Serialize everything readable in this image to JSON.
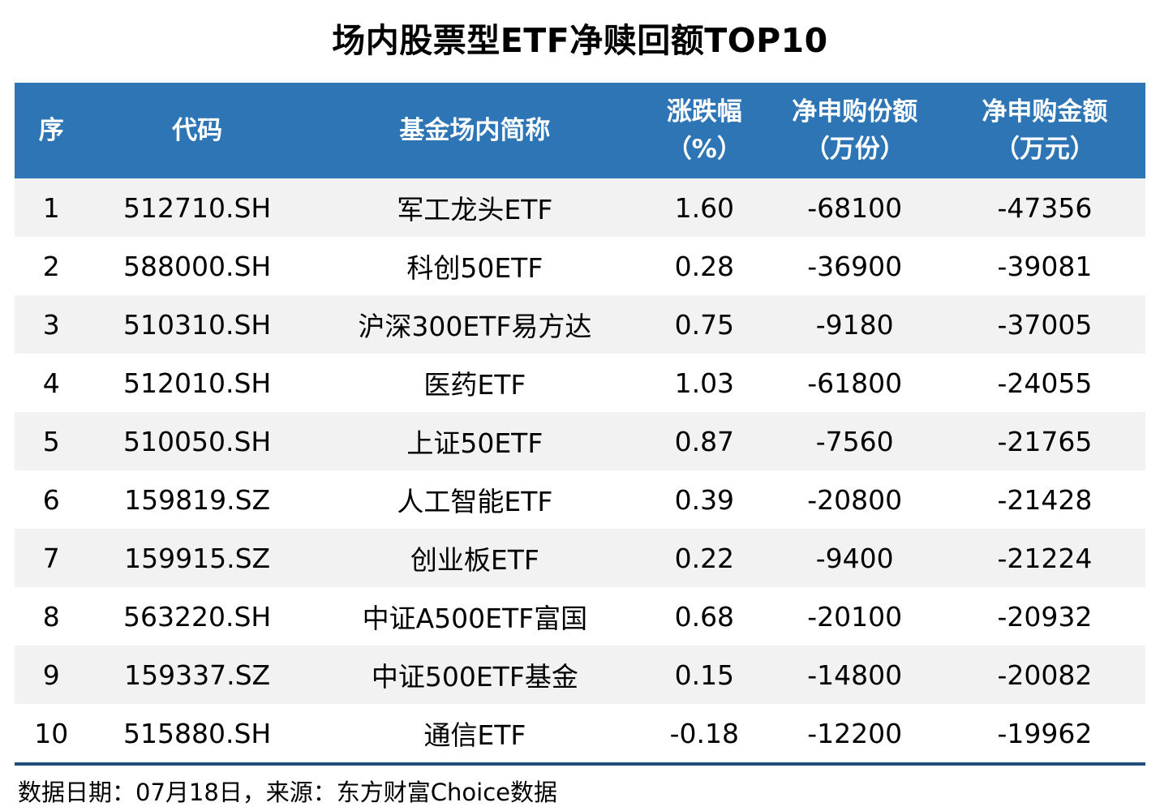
{
  "title": "场内股票型ETF净赎回额TOP10",
  "footer": {
    "text": "数据日期：07月18日，来源：东方财富Choice数据"
  },
  "colors": {
    "header_bg": "#2E75B6",
    "header_text": "#FFFFFF",
    "row_alt_bg": "#F2F2F2",
    "rule_line": "#1F4E79"
  },
  "chart_data": {
    "type": "table",
    "title": "场内股票型ETF净赎回额TOP10",
    "columns": [
      {
        "label": "序",
        "sub": ""
      },
      {
        "label": "代码",
        "sub": ""
      },
      {
        "label": "基金场内简称",
        "sub": ""
      },
      {
        "label": "涨跌幅",
        "sub": "（%）"
      },
      {
        "label": "净申购份额",
        "sub": "（万份）"
      },
      {
        "label": "净申购金额",
        "sub": "（万元）"
      }
    ],
    "rows": [
      [
        "1",
        "512710.SH",
        "军工龙头ETF",
        "1.60",
        "-68100",
        "-47356"
      ],
      [
        "2",
        "588000.SH",
        "科创50ETF",
        "0.28",
        "-36900",
        "-39081"
      ],
      [
        "3",
        "510310.SH",
        "沪深300ETF易方达",
        "0.75",
        "-9180",
        "-37005"
      ],
      [
        "4",
        "512010.SH",
        "医药ETF",
        "1.03",
        "-61800",
        "-24055"
      ],
      [
        "5",
        "510050.SH",
        "上证50ETF",
        "0.87",
        "-7560",
        "-21765"
      ],
      [
        "6",
        "159819.SZ",
        "人工智能ETF",
        "0.39",
        "-20800",
        "-21428"
      ],
      [
        "7",
        "159915.SZ",
        "创业板ETF",
        "0.22",
        "-9400",
        "-21224"
      ],
      [
        "8",
        "563220.SH",
        "中证A500ETF富国",
        "0.68",
        "-20100",
        "-20932"
      ],
      [
        "9",
        "159337.SZ",
        "中证500ETF基金",
        "0.15",
        "-14800",
        "-20082"
      ],
      [
        "10",
        "515880.SH",
        "通信ETF",
        "-0.18",
        "-12200",
        "-19962"
      ]
    ]
  }
}
